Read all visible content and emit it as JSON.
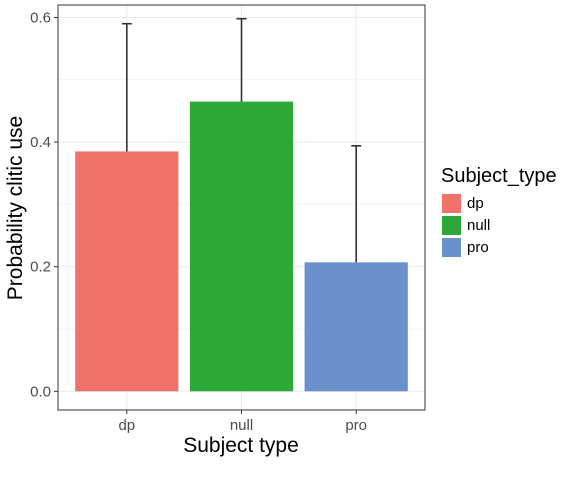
{
  "chart_data": {
    "type": "bar",
    "title": "",
    "xlabel": "Subject type",
    "ylabel": "Probability clitic use",
    "categories": [
      "dp",
      "null",
      "pro"
    ],
    "values": [
      0.385,
      0.465,
      0.207
    ],
    "error_upper": [
      0.59,
      0.598,
      0.394
    ],
    "ylim": [
      0,
      0.6
    ],
    "y_ticks": [
      "0.0",
      "0.2",
      "0.4",
      "0.6"
    ],
    "colors": [
      "#f0726a",
      "#2ea838",
      "#6b91cd"
    ],
    "grid": true,
    "legend": {
      "title": "Subject_type",
      "placement": "right",
      "entries": [
        "dp",
        "null",
        "pro"
      ]
    }
  }
}
